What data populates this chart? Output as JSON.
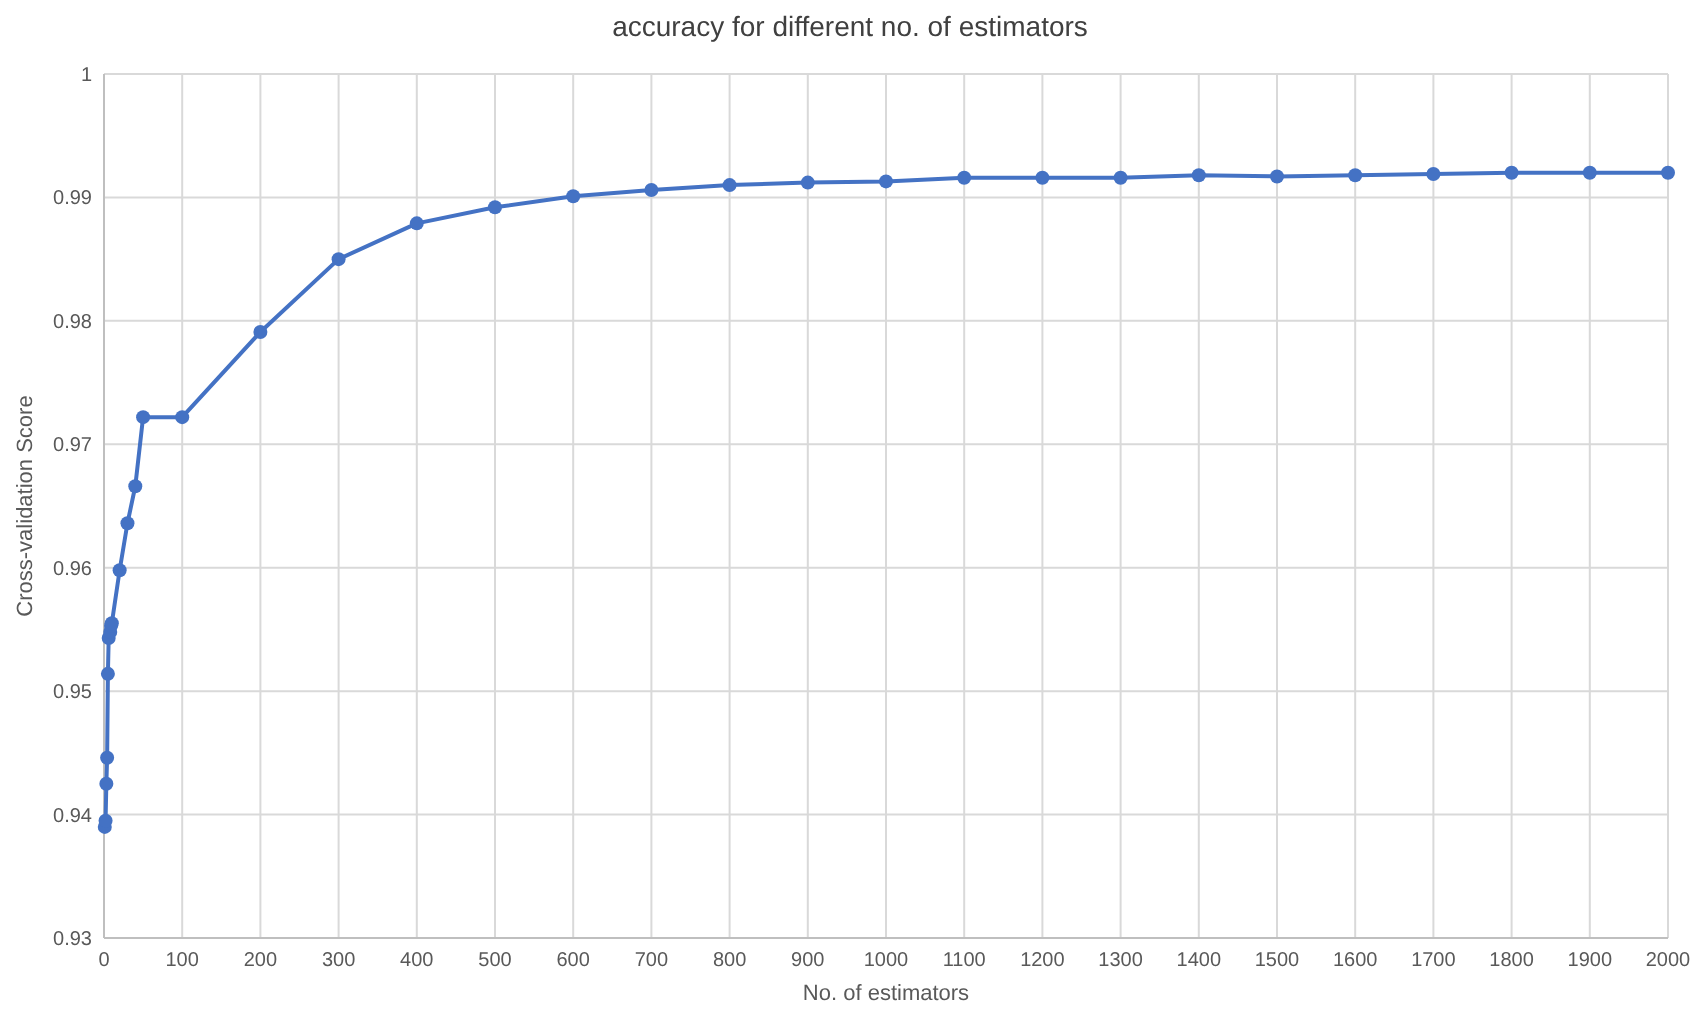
{
  "chart_data": {
    "type": "line",
    "title": "accuracy for different no. of estimators",
    "xlabel": "No. of estimators",
    "ylabel": "Cross-validation Score",
    "x": [
      1,
      2,
      3,
      4,
      5,
      6,
      8,
      9,
      10,
      20,
      30,
      40,
      50,
      100,
      200,
      300,
      400,
      500,
      600,
      700,
      800,
      900,
      1000,
      1100,
      1200,
      1300,
      1400,
      1500,
      1600,
      1700,
      1800,
      1900,
      2000
    ],
    "series": [
      {
        "color": "#4472c4",
        "values": [
          0.939,
          0.9395,
          0.9425,
          0.9446,
          0.9514,
          0.9543,
          0.9548,
          0.9553,
          0.9555,
          0.9598,
          0.9636,
          0.9666,
          0.9722,
          0.9722,
          0.9791,
          0.985,
          0.9879,
          0.9892,
          0.9901,
          0.9906,
          0.991,
          0.9912,
          0.9913,
          0.9916,
          0.9916,
          0.9916,
          0.9918,
          0.9917,
          0.9918,
          0.9919,
          0.992,
          0.992,
          0.992
        ]
      }
    ],
    "xlim": [
      0,
      2000
    ],
    "xticks": [
      0,
      100,
      200,
      300,
      400,
      500,
      600,
      700,
      800,
      900,
      1000,
      1100,
      1200,
      1300,
      1400,
      1500,
      1600,
      1700,
      1800,
      1900,
      2000
    ],
    "ylim": [
      0.93,
      1
    ],
    "yticks": [
      0.93,
      0.94,
      0.95,
      0.96,
      0.97,
      0.98,
      0.99,
      1
    ],
    "grid": true,
    "marker": "circle",
    "line_style": "solid"
  }
}
